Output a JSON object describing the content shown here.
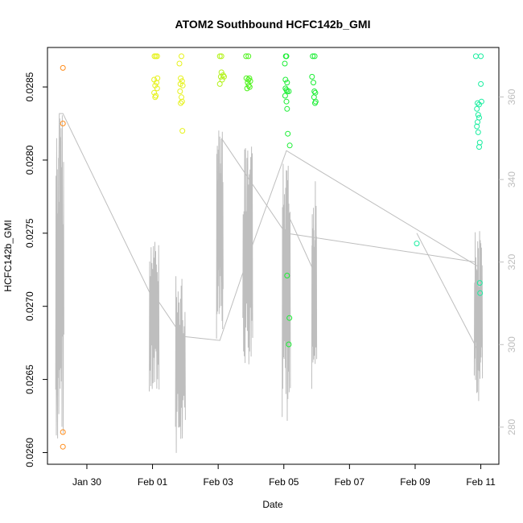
{
  "chart_data": {
    "type": "scatter",
    "title": "ATOM2 Southbound HCFC142b_GMI",
    "xlabel": "Date",
    "ylabel": "HCFC142b_GMI",
    "x_ticks": [
      "Jan 30",
      "Feb 01",
      "Feb 03",
      "Feb 05",
      "Feb 07",
      "Feb 09",
      "Feb 11"
    ],
    "x_tick_days": [
      1,
      3,
      5,
      7,
      9,
      11,
      13
    ],
    "xlim_days": [
      -0.2,
      13.55
    ],
    "y_ticks": [
      0.026,
      0.0265,
      0.027,
      0.0275,
      0.028,
      0.0285
    ],
    "y_tick_labels": [
      "0.0260",
      "0.0265",
      "0.0270",
      "0.0275",
      "0.0280",
      "0.0285"
    ],
    "ylim": [
      0.02592,
      0.02877
    ],
    "y2_ticks": [
      280,
      300,
      320,
      340,
      360
    ],
    "y2lim": [
      271,
      372
    ],
    "colors": {
      "line": "#bebebe",
      "orange": "#ff8c1a",
      "yellow": "#e6f21a",
      "yellowgreen": "#b3f21a",
      "green": "#4cf21a",
      "brightgreen": "#1aee33",
      "teal": "#1aeea0"
    },
    "series": [
      {
        "color": "orange",
        "points": [
          [
            0.27,
            0.02863
          ],
          [
            0.27,
            0.02825
          ],
          [
            0.27,
            0.02614
          ],
          [
            0.27,
            0.02604
          ]
        ]
      },
      {
        "color": "yellow",
        "points": [
          [
            3.05,
            0.02846
          ],
          [
            3.08,
            0.02843
          ],
          [
            3.1,
            0.02844
          ],
          [
            3.05,
            0.02855
          ],
          [
            3.12,
            0.02853
          ],
          [
            3.15,
            0.02856
          ],
          [
            3.08,
            0.02851
          ],
          [
            3.06,
            0.02871
          ],
          [
            3.1,
            0.02871
          ],
          [
            3.14,
            0.02871
          ],
          [
            3.14,
            0.02849
          ]
        ]
      },
      {
        "color": "yellow",
        "points": [
          [
            3.88,
            0.02871
          ],
          [
            3.82,
            0.02866
          ],
          [
            3.86,
            0.02856
          ],
          [
            3.9,
            0.02854
          ],
          [
            3.85,
            0.02852
          ],
          [
            3.92,
            0.02851
          ],
          [
            3.84,
            0.02847
          ],
          [
            3.88,
            0.02843
          ],
          [
            3.86,
            0.02839
          ],
          [
            3.9,
            0.0284
          ],
          [
            3.91,
            0.0282
          ]
        ]
      },
      {
        "color": "yellowgreen",
        "points": [
          [
            5.05,
            0.02871
          ],
          [
            5.1,
            0.02871
          ],
          [
            5.1,
            0.0286
          ],
          [
            5.15,
            0.02858
          ],
          [
            5.08,
            0.02857
          ],
          [
            5.12,
            0.02855
          ],
          [
            5.05,
            0.02852
          ],
          [
            5.18,
            0.02857
          ]
        ]
      },
      {
        "color": "green",
        "points": [
          [
            5.85,
            0.02871
          ],
          [
            5.92,
            0.02871
          ],
          [
            5.86,
            0.02856
          ],
          [
            5.95,
            0.02856
          ],
          [
            5.9,
            0.02853
          ],
          [
            5.98,
            0.02854
          ],
          [
            5.93,
            0.02851
          ],
          [
            5.88,
            0.02849
          ],
          [
            5.96,
            0.0285
          ],
          [
            5.92,
            0.02855
          ]
        ]
      },
      {
        "color": "brightgreen",
        "points": [
          [
            7.03,
            0.02866
          ],
          [
            7.08,
            0.02871
          ],
          [
            7.06,
            0.02871
          ],
          [
            7.05,
            0.02855
          ],
          [
            7.1,
            0.02853
          ],
          [
            7.05,
            0.02849
          ],
          [
            7.08,
            0.02848
          ],
          [
            7.04,
            0.02844
          ],
          [
            7.1,
            0.02847
          ],
          [
            7.15,
            0.02847
          ],
          [
            7.08,
            0.0284
          ],
          [
            7.1,
            0.02835
          ],
          [
            7.12,
            0.02818
          ],
          [
            7.18,
            0.0281
          ],
          [
            7.1,
            0.02721
          ],
          [
            7.17,
            0.02692
          ],
          [
            7.15,
            0.02674
          ]
        ]
      },
      {
        "color": "brightgreen",
        "points": [
          [
            7.88,
            0.02871
          ],
          [
            7.94,
            0.02871
          ],
          [
            7.86,
            0.02857
          ],
          [
            7.9,
            0.02853
          ],
          [
            7.93,
            0.02847
          ],
          [
            7.96,
            0.02846
          ],
          [
            7.92,
            0.02843
          ],
          [
            7.95,
            0.02839
          ],
          [
            7.97,
            0.0284
          ]
        ]
      },
      {
        "color": "teal",
        "points": [
          [
            11.05,
            0.02743
          ],
          [
            12.85,
            0.02871
          ],
          [
            13.0,
            0.02871
          ],
          [
            13.0,
            0.02852
          ],
          [
            12.9,
            0.02839
          ],
          [
            12.95,
            0.02838
          ],
          [
            13.02,
            0.0284
          ],
          [
            12.88,
            0.02835
          ],
          [
            12.92,
            0.02831
          ],
          [
            12.95,
            0.02829
          ],
          [
            12.9,
            0.02826
          ],
          [
            12.88,
            0.02823
          ],
          [
            12.92,
            0.02819
          ],
          [
            12.97,
            0.02812
          ],
          [
            12.95,
            0.02809
          ],
          [
            12.97,
            0.02716
          ],
          [
            12.98,
            0.02709
          ]
        ]
      }
    ],
    "line_y2_anchors": [
      [
        0.27,
        356
      ],
      [
        3.05,
        312
      ],
      [
        3.9,
        302
      ],
      [
        5.05,
        301
      ],
      [
        5.95,
        322
      ],
      [
        7.08,
        347
      ],
      [
        7.9,
        343
      ],
      [
        12.9,
        319
      ],
      [
        13.0,
        299
      ]
    ],
    "line_segments": [
      [
        [
          0.07,
          278
        ],
        [
          0.16,
          356
        ],
        [
          0.27,
          356
        ],
        [
          2.95,
          312
        ],
        [
          3.05,
          312
        ],
        [
          3.9,
          302
        ],
        [
          5.05,
          301
        ],
        [
          5.95,
          322
        ],
        [
          7.08,
          347
        ],
        [
          7.9,
          343
        ],
        [
          12.9,
          319
        ]
      ],
      [
        [
          5.1,
          350
        ],
        [
          7.05,
          327
        ],
        [
          12.85,
          320
        ]
      ],
      [
        [
          7.1,
          332
        ],
        [
          7.9,
          318
        ]
      ],
      [
        [
          11.05,
          327
        ],
        [
          12.95,
          298
        ]
      ]
    ]
  }
}
